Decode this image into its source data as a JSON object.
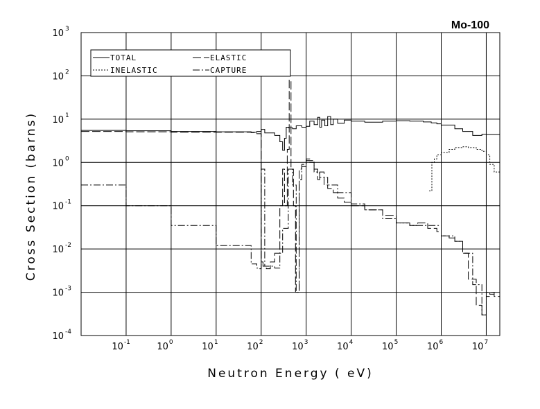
{
  "chart_data": {
    "type": "line",
    "title": "Mo-100",
    "xlabel": "Neutron Energy ( eV)",
    "ylabel": "Cross Section (barns)",
    "xscale": "log",
    "yscale": "log",
    "xlim": [
      0.01,
      20000000
    ],
    "ylim": [
      0.0001,
      1000
    ],
    "grid": true,
    "legend_position": "top-left",
    "x_ticks": [
      {
        "base": "10",
        "exp": "-1",
        "value": 0.1
      },
      {
        "base": "10",
        "exp": "0",
        "value": 1
      },
      {
        "base": "10",
        "exp": "1",
        "value": 10
      },
      {
        "base": "10",
        "exp": "2",
        "value": 100
      },
      {
        "base": "10",
        "exp": "3",
        "value": 1000
      },
      {
        "base": "10",
        "exp": "4",
        "value": 10000
      },
      {
        "base": "10",
        "exp": "5",
        "value": 100000
      },
      {
        "base": "10",
        "exp": "6",
        "value": 1000000
      },
      {
        "base": "10",
        "exp": "7",
        "value": 10000000
      }
    ],
    "y_ticks": [
      {
        "base": "10",
        "exp": "-4",
        "value": 0.0001
      },
      {
        "base": "10",
        "exp": "-3",
        "value": 0.001
      },
      {
        "base": "10",
        "exp": "-2",
        "value": 0.01
      },
      {
        "base": "10",
        "exp": "-1",
        "value": 0.1
      },
      {
        "base": "10",
        "exp": "0",
        "value": 1
      },
      {
        "base": "10",
        "exp": "1",
        "value": 10
      },
      {
        "base": "10",
        "exp": "2",
        "value": 100
      },
      {
        "base": "10",
        "exp": "3",
        "value": 1000
      }
    ],
    "series": [
      {
        "name": "TOTAL",
        "dash": "solid",
        "x": [
          0.01,
          0.1,
          1,
          10,
          60,
          80,
          100,
          120,
          200,
          260,
          300,
          330,
          360,
          400,
          500,
          600,
          800,
          1000,
          1200,
          1500,
          1800,
          2000,
          2200,
          2600,
          3000,
          3500,
          4000,
          5000,
          7000,
          10000,
          20000,
          50000,
          100000,
          200000,
          400000,
          600000,
          800000,
          1000000,
          2000000,
          3000000,
          5000000,
          8000000,
          10000000,
          20000000
        ],
        "y": [
          5.5,
          5.4,
          5.2,
          5.1,
          5.0,
          5.2,
          5.8,
          4.8,
          4.2,
          3.0,
          1.9,
          3.6,
          6.5,
          6.3,
          6.0,
          7.0,
          6.5,
          6.8,
          9.0,
          7.5,
          11.0,
          6.5,
          9.5,
          7.0,
          11.5,
          7.5,
          10.0,
          8.0,
          9.5,
          9.0,
          8.5,
          9.0,
          9.2,
          9.0,
          8.6,
          8.2,
          7.8,
          7.3,
          6.0,
          5.2,
          4.2,
          4.5,
          4.4,
          3.8
        ]
      },
      {
        "name": "ELASTIC",
        "dash": "long-dash",
        "x": [
          0.01,
          0.1,
          1,
          10,
          60,
          80,
          100,
          110,
          130,
          160,
          200,
          260,
          300,
          330,
          380,
          420,
          460,
          520,
          580,
          600,
          700,
          800,
          1000,
          1200,
          1500,
          1800,
          2000,
          2500,
          3000,
          4000,
          5000,
          7000,
          10000,
          20000,
          50000,
          100000,
          200000,
          300000,
          500000,
          800000,
          1000000,
          1500000,
          2000000,
          3000000,
          4000000,
          6000000,
          8000000,
          10000000,
          12000000,
          15000000,
          20000000
        ],
        "y": [
          5.2,
          5.1,
          5.0,
          5.0,
          4.9,
          4.6,
          0.005,
          0.004,
          0.0035,
          0.005,
          0.008,
          0.1,
          0.7,
          0.1,
          2.0,
          80,
          0.7,
          0.1,
          0.001,
          0.001,
          0.7,
          0.9,
          1.2,
          1.0,
          0.7,
          0.4,
          0.6,
          0.3,
          0.25,
          0.2,
          0.15,
          0.12,
          0.1,
          0.08,
          0.06,
          0.04,
          0.035,
          0.04,
          0.03,
          0.025,
          0.02,
          0.018,
          0.015,
          0.008,
          0.002,
          0.0005,
          0.0003,
          0.001,
          0.0009,
          0.0008,
          0.0007
        ]
      },
      {
        "name": "INELASTIC",
        "dash": "short-dash",
        "x": [
          540000,
          620000,
          700000,
          800000,
          1000000,
          1500000,
          2000000,
          3000000,
          4000000,
          6000000,
          8000000,
          10000000,
          12000000,
          15000000,
          20000000
        ],
        "y": [
          0.22,
          1.0,
          1.2,
          1.5,
          1.7,
          2.0,
          2.2,
          2.3,
          2.2,
          2.0,
          1.8,
          1.5,
          0.9,
          0.6,
          0.4
        ]
      },
      {
        "name": "CAPTURE",
        "dash": "dash-dot",
        "x": [
          0.01,
          0.1,
          1,
          10,
          60,
          80,
          90,
          100,
          120,
          200,
          260,
          300,
          400,
          500,
          600,
          700,
          800,
          1000,
          1500,
          2000,
          3000,
          5000,
          10000,
          20000,
          50000,
          100000,
          200000,
          500000,
          1000000,
          2000000,
          3000000,
          5000000,
          8000000,
          10000000,
          12000000,
          15000000
        ],
        "y": [
          0.3,
          0.1,
          0.035,
          0.012,
          0.0045,
          0.0036,
          0.0035,
          0.7,
          0.004,
          0.0036,
          0.008,
          0.03,
          0.7,
          0.3,
          0.001,
          0.4,
          0.8,
          1.1,
          0.6,
          0.45,
          0.3,
          0.2,
          0.11,
          0.08,
          0.05,
          0.04,
          0.035,
          0.035,
          0.02,
          0.015,
          0.008,
          0.0015,
          0.0003,
          0.0008,
          0.001,
          0.0009
        ]
      }
    ]
  }
}
